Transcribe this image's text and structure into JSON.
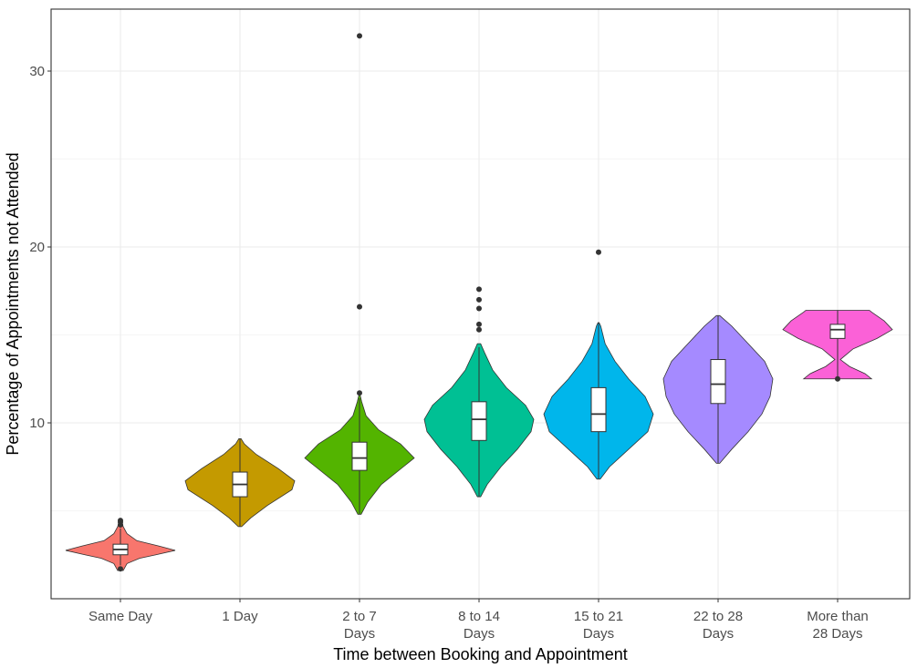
{
  "chart_data": {
    "type": "violin",
    "xlabel": "Time between Booking and Appointment",
    "ylabel": "Percentage of Appointments not Attended",
    "ylim": [
      0,
      33
    ],
    "yticks": [
      10,
      20,
      30
    ],
    "grid": true,
    "legend": "none",
    "categories": [
      {
        "label": [
          "Same Day"
        ],
        "color": "#F8766D",
        "profile": [
          [
            1.6,
            0.05
          ],
          [
            2.0,
            0.12
          ],
          [
            2.3,
            0.35
          ],
          [
            2.5,
            0.65
          ],
          [
            2.75,
            1.0
          ],
          [
            3.0,
            0.7
          ],
          [
            3.3,
            0.3
          ],
          [
            3.7,
            0.12
          ],
          [
            4.1,
            0.05
          ],
          [
            4.5,
            0.02
          ]
        ],
        "box": {
          "q1": 2.5,
          "median": 2.8,
          "q3": 3.1,
          "whisker_low": 1.9,
          "whisker_high": 4.0
        },
        "outliers": [
          4.2,
          4.35,
          4.45,
          1.7
        ]
      },
      {
        "label": [
          "1 Day"
        ],
        "color": "#C49A00",
        "profile": [
          [
            4.1,
            0.03
          ],
          [
            4.6,
            0.2
          ],
          [
            5.3,
            0.5
          ],
          [
            6.2,
            0.95
          ],
          [
            6.7,
            1.0
          ],
          [
            7.4,
            0.7
          ],
          [
            8.2,
            0.3
          ],
          [
            8.8,
            0.08
          ],
          [
            9.1,
            0.02
          ]
        ],
        "box": {
          "q1": 5.8,
          "median": 6.5,
          "q3": 7.2,
          "whisker_low": 4.1,
          "whisker_high": 9.1
        },
        "outliers": []
      },
      {
        "label": [
          "2 to 7",
          "Days"
        ],
        "color": "#53B400",
        "profile": [
          [
            4.8,
            0.03
          ],
          [
            5.5,
            0.15
          ],
          [
            6.5,
            0.4
          ],
          [
            7.5,
            0.8
          ],
          [
            8.0,
            1.0
          ],
          [
            8.8,
            0.75
          ],
          [
            9.6,
            0.35
          ],
          [
            10.4,
            0.12
          ],
          [
            11.2,
            0.04
          ],
          [
            11.6,
            0.01
          ]
        ],
        "box": {
          "q1": 7.3,
          "median": 8.0,
          "q3": 8.9,
          "whisker_low": 4.8,
          "whisker_high": 11.4
        },
        "outliers": [
          11.7,
          16.6,
          32.0
        ]
      },
      {
        "label": [
          "8 to 14",
          "Days"
        ],
        "color": "#00C094",
        "profile": [
          [
            5.8,
            0.03
          ],
          [
            6.5,
            0.15
          ],
          [
            7.5,
            0.4
          ],
          [
            8.5,
            0.7
          ],
          [
            9.5,
            0.95
          ],
          [
            10.2,
            1.0
          ],
          [
            11.0,
            0.85
          ],
          [
            12.0,
            0.5
          ],
          [
            13.0,
            0.25
          ],
          [
            14.0,
            0.1
          ],
          [
            14.5,
            0.03
          ]
        ],
        "box": {
          "q1": 9.0,
          "median": 10.2,
          "q3": 11.2,
          "whisker_low": 5.8,
          "whisker_high": 14.3
        },
        "outliers": [
          15.3,
          15.6,
          16.5,
          17.0,
          17.6
        ]
      },
      {
        "label": [
          "15 to 21",
          "Days"
        ],
        "color": "#00B6EB",
        "profile": [
          [
            6.8,
            0.03
          ],
          [
            7.5,
            0.2
          ],
          [
            8.5,
            0.55
          ],
          [
            9.5,
            0.9
          ],
          [
            10.5,
            1.0
          ],
          [
            11.5,
            0.85
          ],
          [
            12.5,
            0.55
          ],
          [
            13.5,
            0.3
          ],
          [
            14.5,
            0.12
          ],
          [
            15.5,
            0.04
          ],
          [
            15.7,
            0.01
          ]
        ],
        "box": {
          "q1": 9.5,
          "median": 10.5,
          "q3": 12.0,
          "whisker_low": 6.8,
          "whisker_high": 15.7
        },
        "outliers": [
          19.7
        ]
      },
      {
        "label": [
          "22 to 28",
          "Days"
        ],
        "color": "#A58AFF",
        "profile": [
          [
            7.7,
            0.03
          ],
          [
            8.5,
            0.25
          ],
          [
            9.5,
            0.55
          ],
          [
            10.5,
            0.8
          ],
          [
            11.5,
            0.95
          ],
          [
            12.5,
            1.0
          ],
          [
            13.5,
            0.85
          ],
          [
            14.5,
            0.55
          ],
          [
            15.5,
            0.25
          ],
          [
            16.1,
            0.03
          ]
        ],
        "box": {
          "q1": 11.1,
          "median": 12.2,
          "q3": 13.6,
          "whisker_low": 7.7,
          "whisker_high": 16.1
        },
        "outliers": []
      },
      {
        "label": [
          "More than",
          "28 Days"
        ],
        "color": "#FB61D7",
        "profile": [
          [
            12.5,
            0.62
          ],
          [
            12.8,
            0.5
          ],
          [
            13.2,
            0.22
          ],
          [
            13.6,
            0.05
          ],
          [
            14.2,
            0.28
          ],
          [
            14.8,
            0.72
          ],
          [
            15.3,
            1.0
          ],
          [
            15.8,
            0.85
          ],
          [
            16.3,
            0.62
          ],
          [
            16.4,
            0.58
          ]
        ],
        "box": {
          "q1": 14.8,
          "median": 15.3,
          "q3": 15.6,
          "whisker_low": 12.5,
          "whisker_high": 16.4
        },
        "outliers": [
          12.5
        ]
      }
    ]
  }
}
